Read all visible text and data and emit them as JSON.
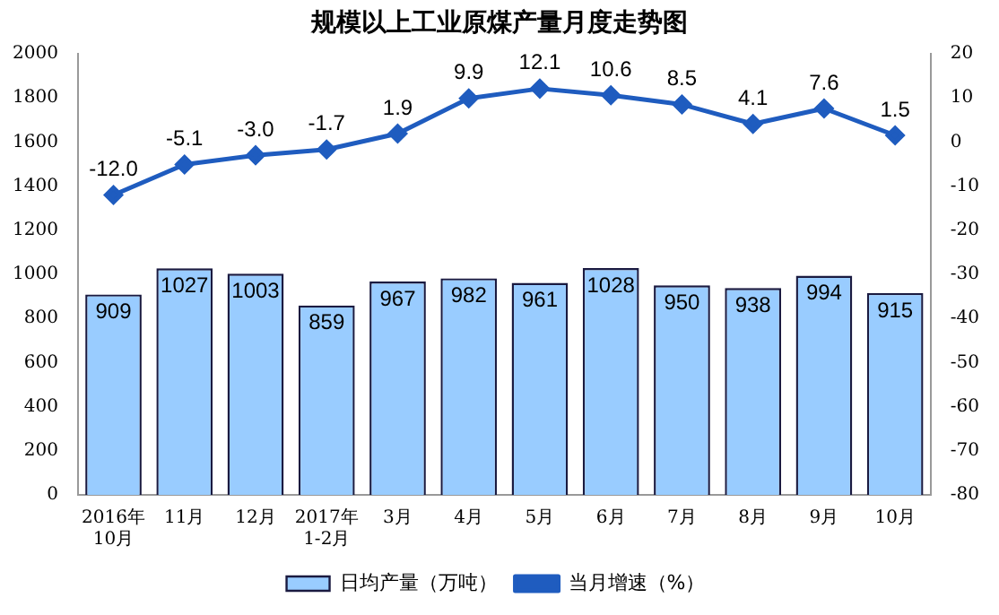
{
  "chart_data": {
    "type": "bar",
    "title": "规模以上工业原煤产量月度走势图",
    "categories": [
      "2016年\n10月",
      "11月",
      "12月",
      "2017年\n1-2月",
      "3月",
      "4月",
      "5月",
      "6月",
      "7月",
      "8月",
      "9月",
      "10月"
    ],
    "series": [
      {
        "name": "日均产量（万吨）",
        "color": "#99ccff",
        "values": [
          909,
          1027,
          1003,
          859,
          967,
          982,
          961,
          1028,
          950,
          938,
          994,
          915
        ],
        "value_labels": [
          "909",
          "1027",
          "1003",
          "859",
          "967",
          "982",
          "961",
          "1028",
          "950",
          "938",
          "994",
          "915"
        ]
      },
      {
        "name": "当月增速（%）",
        "type": "line",
        "axis": "y2",
        "color": "#1f5cbf",
        "marker": "diamond",
        "values": [
          -12.0,
          -5.1,
          -3.0,
          -1.7,
          1.9,
          9.9,
          12.1,
          10.6,
          8.5,
          4.1,
          7.6,
          1.5
        ],
        "value_labels": [
          "-12.0",
          "-5.1",
          "-3.0",
          "-1.7",
          "1.9",
          "9.9",
          "12.1",
          "10.6",
          "8.5",
          "4.1",
          "7.6",
          "1.5"
        ]
      }
    ],
    "ylim": [
      0,
      2000
    ],
    "yticks": [
      0,
      200,
      400,
      600,
      800,
      1000,
      1200,
      1400,
      1600,
      1800,
      2000
    ],
    "y2lim": [
      -80,
      20
    ],
    "y2ticks": [
      -80,
      -70,
      -60,
      -50,
      -40,
      -30,
      -20,
      -10,
      0,
      10,
      20
    ],
    "grid": false,
    "legend": "bottom"
  }
}
